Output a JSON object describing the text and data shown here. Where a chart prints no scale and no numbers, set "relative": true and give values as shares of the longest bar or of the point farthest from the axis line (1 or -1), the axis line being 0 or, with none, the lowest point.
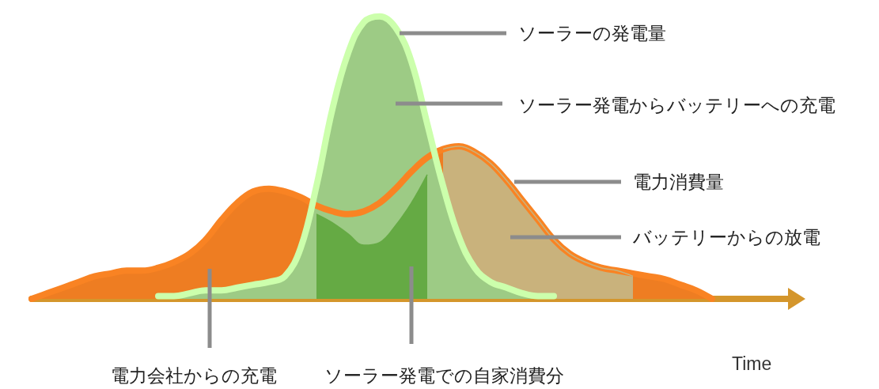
{
  "chart_data": {
    "type": "area",
    "relative": true,
    "xlabel": "Time",
    "categories": [
      null,
      null,
      null,
      null,
      null,
      null,
      null,
      null,
      null,
      null,
      null,
      null,
      null,
      null,
      null,
      null,
      null,
      null,
      null,
      null,
      null,
      null,
      null,
      null,
      null,
      null,
      null,
      null,
      null,
      null,
      null,
      null,
      null,
      null,
      null,
      null,
      null,
      null,
      null,
      null,
      null,
      null,
      null,
      null,
      null,
      null,
      null,
      null,
      null
    ],
    "series": [
      {
        "color": "#ee7d22",
        "values": [
          0,
          0.02,
          0.04,
          0.06,
          0.08,
          0.09,
          0.1,
          0.1,
          0.11,
          0.13,
          0.16,
          0.21,
          0.28,
          0.34,
          0.38,
          0.39,
          0.38,
          0.36,
          0.33,
          0.31,
          0.3,
          0.31,
          0.34,
          0.39,
          0.45,
          0.5,
          0.53,
          0.54,
          0.52,
          0.48,
          0.42,
          0.35,
          0.28,
          0.21,
          0.16,
          0.13,
          0.11,
          0.1,
          0.09,
          0.08,
          0.07,
          0.05,
          0.03,
          0,
          null,
          null,
          null,
          null,
          null
        ]
      },
      {
        "color": "#c9b27c",
        "values": [
          null,
          null,
          null,
          null,
          null,
          null,
          null,
          null,
          null,
          null,
          null,
          null,
          null,
          null,
          null,
          null,
          null,
          null,
          null,
          null,
          null,
          null,
          null,
          null,
          null,
          null,
          0.53,
          0.54,
          0.52,
          0.48,
          0.42,
          0.35,
          0.28,
          0.21,
          0.16,
          0.13,
          0.11,
          0.1,
          0.08,
          null,
          null,
          null,
          null,
          null,
          null,
          null,
          null,
          null,
          null
        ]
      },
      {
        "color": "#9dcb85",
        "values": [
          null,
          null,
          null,
          null,
          null,
          null,
          null,
          null,
          0.01,
          0.01,
          0.02,
          0.03,
          0.03,
          0.04,
          0.05,
          0.06,
          0.08,
          0.18,
          0.4,
          0.67,
          0.87,
          0.98,
          1,
          0.96,
          0.84,
          0.62,
          0.4,
          0.22,
          0.11,
          0.06,
          0.04,
          0.02,
          0.01,
          0.01,
          null,
          null,
          null,
          null,
          null,
          null,
          null,
          null,
          null,
          null,
          null,
          null,
          null,
          null,
          null
        ]
      },
      {
        "color": "#65aa44",
        "values": [
          null,
          null,
          null,
          null,
          null,
          null,
          null,
          null,
          null,
          null,
          null,
          null,
          null,
          null,
          null,
          null,
          null,
          null,
          0.3,
          0.27,
          0.23,
          0.19,
          0.2,
          0.26,
          0.34,
          0.44,
          null,
          null,
          null,
          null,
          null,
          null,
          null,
          null,
          null,
          null,
          null,
          null,
          null,
          null,
          null,
          null,
          null,
          null,
          null,
          null,
          null,
          null,
          null
        ]
      }
    ],
    "annotations": [
      "ソーラーの発電量",
      "ソーラー発電からバッテリーへの充電",
      "電力消費量",
      "バッテリーからの放電",
      "電力会社からの充電",
      "ソーラー発電での自家消費分"
    ]
  }
}
